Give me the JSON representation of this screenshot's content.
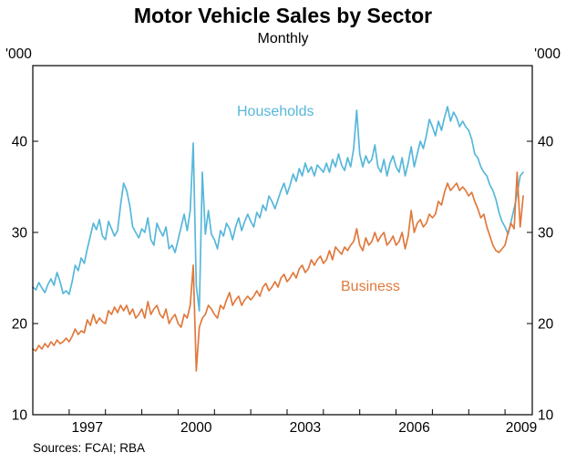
{
  "header": {
    "title": "Motor Vehicle Sales by Sector",
    "subtitle": "Monthly"
  },
  "footer": {
    "sources": "Sources: FCAI; RBA"
  },
  "chart_data": {
    "type": "line",
    "title": "Motor Vehicle Sales by Sector",
    "subtitle": "Monthly",
    "unit_label": "'000",
    "grid": false,
    "legend": "inline-labels",
    "x_axis_range": [
      1996.0,
      2009.75
    ],
    "y_axis_range": [
      10,
      48.3
    ],
    "y_ticks": [
      10,
      20,
      30,
      40
    ],
    "x_label_years": [
      1997,
      2000,
      2003,
      2006,
      2009
    ],
    "x_start": 1996.0,
    "x_step_months": 1,
    "series": [
      {
        "name": "Households",
        "color": "#57b7da",
        "values": [
          24.0,
          23.7,
          24.5,
          23.9,
          23.4,
          24.3,
          24.9,
          24.2,
          25.6,
          24.6,
          23.3,
          23.6,
          23.2,
          24.6,
          26.4,
          25.8,
          27.2,
          26.6,
          28.2,
          29.6,
          31.0,
          30.3,
          31.4,
          29.6,
          29.2,
          31.2,
          30.4,
          29.6,
          30.2,
          33.0,
          35.4,
          34.6,
          33.0,
          30.6,
          30.0,
          29.4,
          30.4,
          30.0,
          31.6,
          29.2,
          28.6,
          31.0,
          30.2,
          29.6,
          30.6,
          28.2,
          28.6,
          27.8,
          29.2,
          30.6,
          32.0,
          30.2,
          32.4,
          39.8,
          24.2,
          21.4,
          36.6,
          29.8,
          32.4,
          29.8,
          29.2,
          28.2,
          30.2,
          29.6,
          31.0,
          30.4,
          29.2,
          30.6,
          31.6,
          30.2,
          31.2,
          32.0,
          31.2,
          30.6,
          32.2,
          31.6,
          33.0,
          32.4,
          34.0,
          33.4,
          32.6,
          33.6,
          34.6,
          35.4,
          34.2,
          35.2,
          36.4,
          35.6,
          37.0,
          36.2,
          37.6,
          36.6,
          37.2,
          36.2,
          37.4,
          37.0,
          36.6,
          37.6,
          36.6,
          38.0,
          37.2,
          38.6,
          37.4,
          36.8,
          38.2,
          37.2,
          39.2,
          43.4,
          38.6,
          37.2,
          38.4,
          37.6,
          38.0,
          39.6,
          37.2,
          36.6,
          38.0,
          36.2,
          37.6,
          38.4,
          37.2,
          36.6,
          38.2,
          36.2,
          37.6,
          39.4,
          37.2,
          38.6,
          40.0,
          39.2,
          40.6,
          42.4,
          41.6,
          40.6,
          42.2,
          41.2,
          42.6,
          43.8,
          42.2,
          43.2,
          42.6,
          41.6,
          42.2,
          41.6,
          41.2,
          40.2,
          38.6,
          38.2,
          37.2,
          36.6,
          36.2,
          35.2,
          34.6,
          33.6,
          32.2,
          31.2,
          30.6,
          29.8,
          31.2,
          32.6,
          34.2,
          36.2,
          36.6
        ]
      },
      {
        "name": "Business",
        "color": "#e0793c",
        "values": [
          17.2,
          17.0,
          17.6,
          17.2,
          17.8,
          17.4,
          18.0,
          17.6,
          18.2,
          17.8,
          18.0,
          18.4,
          18.0,
          18.6,
          19.4,
          18.8,
          19.2,
          19.0,
          20.4,
          19.8,
          21.0,
          20.0,
          20.6,
          20.2,
          20.0,
          21.4,
          21.0,
          21.8,
          21.2,
          22.0,
          21.4,
          22.0,
          21.0,
          21.6,
          20.6,
          21.0,
          21.6,
          20.6,
          22.4,
          21.0,
          21.6,
          22.0,
          21.0,
          20.6,
          21.6,
          20.0,
          20.6,
          21.0,
          20.0,
          19.6,
          21.0,
          20.6,
          22.0,
          26.4,
          14.8,
          19.6,
          20.6,
          21.0,
          22.0,
          21.6,
          21.0,
          20.6,
          22.0,
          21.6,
          22.6,
          23.4,
          22.0,
          22.6,
          23.0,
          22.0,
          22.6,
          23.0,
          22.6,
          23.0,
          23.6,
          23.0,
          24.0,
          24.4,
          23.6,
          24.0,
          24.6,
          24.0,
          25.0,
          25.4,
          24.6,
          25.0,
          25.6,
          25.0,
          26.0,
          26.4,
          25.6,
          26.0,
          27.0,
          26.4,
          27.0,
          27.4,
          26.6,
          27.0,
          28.0,
          27.0,
          28.4,
          28.0,
          27.6,
          28.4,
          28.0,
          28.6,
          29.0,
          30.4,
          28.6,
          28.0,
          29.4,
          28.6,
          29.0,
          30.0,
          29.0,
          29.6,
          30.0,
          28.6,
          29.0,
          29.6,
          28.6,
          29.0,
          30.0,
          28.2,
          29.6,
          32.4,
          30.0,
          31.0,
          31.4,
          30.6,
          31.0,
          32.0,
          31.6,
          32.0,
          33.4,
          33.0,
          34.4,
          35.4,
          34.6,
          35.0,
          35.4,
          34.6,
          35.0,
          34.6,
          34.0,
          34.4,
          33.4,
          32.6,
          31.6,
          32.0,
          30.6,
          29.6,
          28.6,
          28.0,
          27.8,
          28.2,
          28.6,
          30.0,
          31.0,
          30.4,
          36.6,
          30.6,
          34.0
        ]
      }
    ]
  }
}
